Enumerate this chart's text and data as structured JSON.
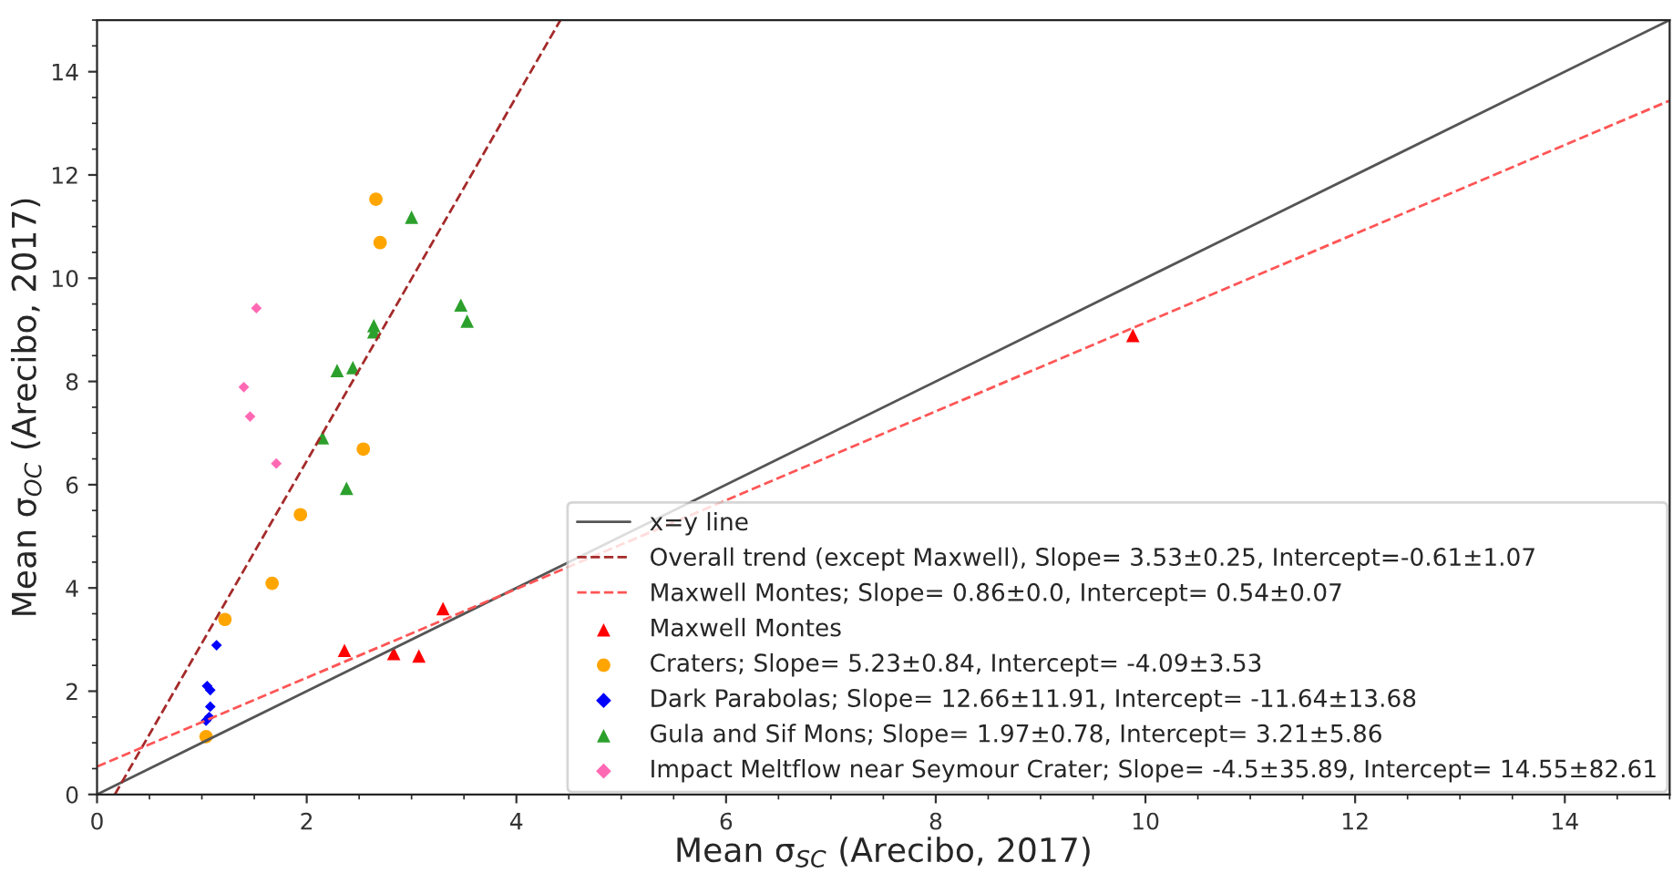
{
  "chart_data": {
    "type": "scatter",
    "xlabel": "Mean σ$_{SC}$ (Arecibo, 2017)",
    "ylabel": "Mean σ$_{OC}$ (Arecibo, 2017)",
    "xlim": [
      0,
      15
    ],
    "ylim": [
      0,
      15
    ],
    "xticks": [
      0,
      2,
      4,
      6,
      8,
      10,
      12,
      14
    ],
    "yticks": [
      0,
      2,
      4,
      6,
      8,
      10,
      12,
      14
    ],
    "grid": false,
    "legend": "bottom right",
    "series": [
      {
        "name": "x=y line",
        "type": "line",
        "color": "#555555",
        "line_style": "solid",
        "marker": "none",
        "x": [
          0,
          15
        ],
        "values": [
          0,
          15
        ]
      },
      {
        "name": "Overall trend (except Maxwell), Slope= 3.53±0.25, Intercept=-0.61±1.07",
        "type": "line",
        "color": "#a52a2a",
        "line_style": "dashed",
        "marker": "none",
        "x": [
          0.17,
          4.42
        ],
        "values": [
          0,
          15
        ]
      },
      {
        "name": "Maxwell Montes; Slope= 0.86±0.0, Intercept= 0.54±0.07",
        "type": "line",
        "color": "#ff5555",
        "line_style": "dashed",
        "marker": "none",
        "x": [
          0,
          15
        ],
        "values": [
          0.54,
          13.44
        ]
      },
      {
        "name": "Maxwell Montes",
        "color": "#ff0000",
        "marker": "triangle",
        "x": [
          2.36,
          2.83,
          3.07,
          3.3,
          9.88
        ],
        "values": [
          2.79,
          2.73,
          2.68,
          3.6,
          8.89
        ]
      },
      {
        "name": "Craters; Slope= 5.23±0.84, Intercept= -4.09±3.53",
        "color": "#ffa500",
        "marker": "circle",
        "x": [
          2.66,
          2.7,
          2.54,
          1.94,
          1.67,
          1.22,
          1.04
        ],
        "values": [
          11.53,
          10.69,
          6.69,
          5.42,
          4.09,
          3.39,
          1.12
        ]
      },
      {
        "name": "Dark Parabolas; Slope= 12.66±11.91, Intercept= -11.64±13.68",
        "color": "#0000ff",
        "marker": "diamond",
        "x": [
          1.14,
          1.05,
          1.08,
          1.08,
          1.07,
          1.04
        ],
        "values": [
          2.89,
          2.1,
          2.02,
          1.7,
          1.5,
          1.43
        ]
      },
      {
        "name": "Gula and Sif Mons; Slope= 1.97±0.78, Intercept= 3.21±5.86",
        "color": "#2ca02c",
        "marker": "triangle",
        "x": [
          3.0,
          2.64,
          2.64,
          2.29,
          2.44,
          2.15,
          2.38,
          3.47,
          3.53
        ],
        "values": [
          11.18,
          9.08,
          8.96,
          8.21,
          8.27,
          6.91,
          5.93,
          9.48,
          9.17
        ]
      },
      {
        "name": "Impact Meltflow near Seymour Crater; Slope= -4.5±35.89, Intercept= 14.55±82.61",
        "color": "#ff69b4",
        "marker": "diamond",
        "x": [
          1.52,
          1.4,
          1.46,
          1.71
        ],
        "values": [
          9.42,
          7.89,
          7.32,
          6.41
        ]
      }
    ]
  }
}
